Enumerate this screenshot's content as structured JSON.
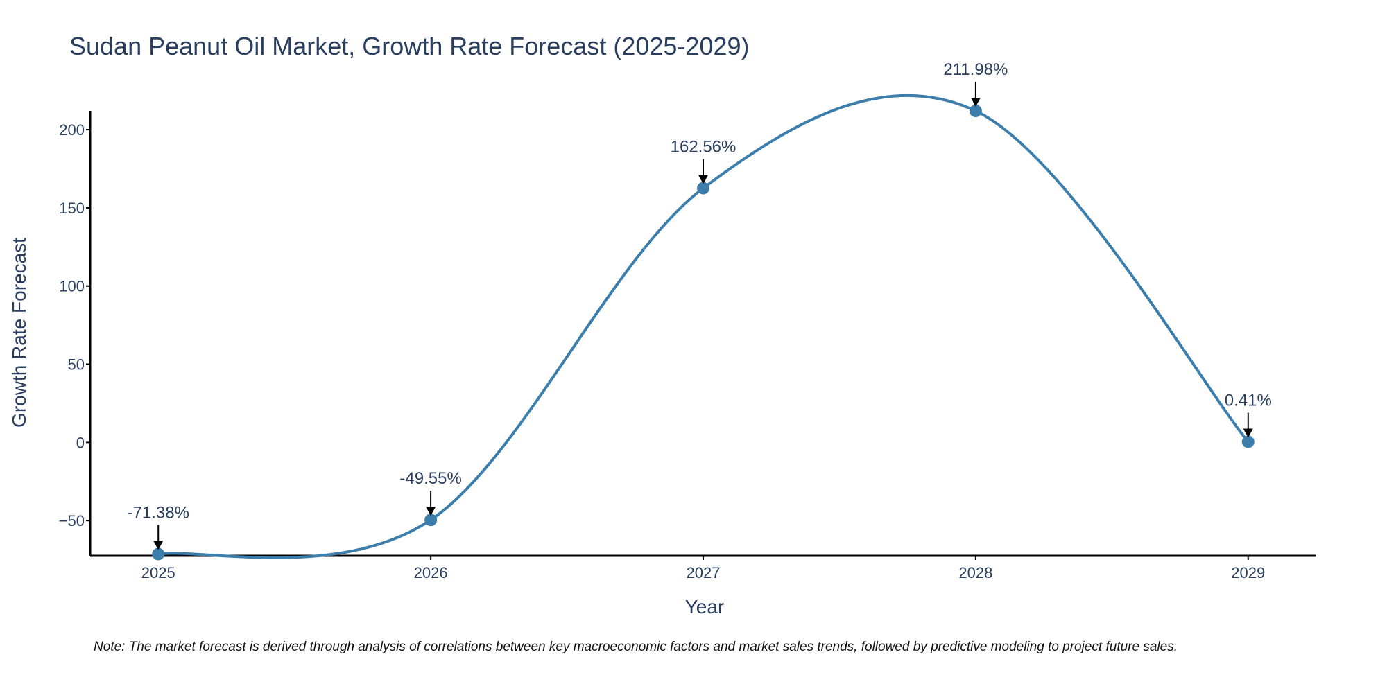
{
  "page": {
    "title": "Sudan Peanut Oil Market, Growth Rate Forecast (2025-2029)",
    "note": "Note: The market forecast is derived through analysis of correlations between key macroeconomic factors and market sales trends, followed by predictive modeling to project future sales."
  },
  "chart_data": {
    "type": "line",
    "title": "Sudan Peanut Oil Market, Growth Rate Forecast (2025-2029)",
    "xlabel": "Year",
    "ylabel": "Growth Rate Forecast",
    "categories": [
      "2025",
      "2026",
      "2027",
      "2028",
      "2029"
    ],
    "series": [
      {
        "name": "Growth Rate Forecast",
        "values": [
          -71.38,
          -49.55,
          162.56,
          211.98,
          0.41
        ],
        "labels": [
          "-71.38%",
          "-49.55%",
          "162.56%",
          "211.98%",
          "0.41%"
        ],
        "color": "#3b7dab"
      }
    ],
    "x_range": [
      2024.75,
      2029.25
    ],
    "ylim": [
      -72.5,
      212
    ],
    "y_ticks": [
      -50,
      0,
      50,
      100,
      150,
      200
    ],
    "y_tick_labels": [
      "−50",
      "0",
      "50",
      "100",
      "150",
      "200"
    ],
    "grid": false,
    "line_shape": "spline",
    "markers": true,
    "annotation_arrows": true
  }
}
